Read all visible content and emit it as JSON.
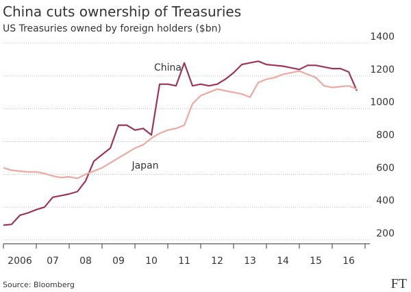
{
  "chart_data": {
    "type": "line",
    "title": "China cuts ownership of Treasuries",
    "subtitle": "US Treasuries owned by foreign holders ($bn)",
    "source": "Source: Bloomberg",
    "logo": "FT",
    "x": [
      2006,
      2006.25,
      2006.5,
      2006.75,
      2007,
      2007.25,
      2007.5,
      2007.75,
      2008,
      2008.25,
      2008.5,
      2008.75,
      2009,
      2009.25,
      2009.5,
      2009.75,
      2010,
      2010.25,
      2010.5,
      2010.75,
      2011,
      2011.25,
      2011.5,
      2011.75,
      2012,
      2012.25,
      2012.5,
      2012.75,
      2013,
      2013.25,
      2013.5,
      2013.75,
      2014,
      2014.25,
      2014.5,
      2014.75,
      2015,
      2015.25,
      2015.5,
      2015.75,
      2016,
      2016.25,
      2016.5,
      2016.75
    ],
    "series": [
      {
        "name": "China",
        "color": "#9b3457",
        "values": [
          290,
          295,
          350,
          365,
          385,
          400,
          460,
          470,
          480,
          495,
          560,
          680,
          720,
          760,
          900,
          900,
          870,
          880,
          840,
          1150,
          1150,
          1140,
          1280,
          1140,
          1150,
          1140,
          1150,
          1180,
          1220,
          1270,
          1280,
          1290,
          1270,
          1265,
          1260,
          1250,
          1240,
          1265,
          1265,
          1255,
          1245,
          1245,
          1225,
          1110
        ]
      },
      {
        "name": "Japan",
        "color": "#eba8a0",
        "values": [
          640,
          625,
          620,
          615,
          615,
          605,
          590,
          580,
          585,
          575,
          600,
          620,
          640,
          670,
          700,
          730,
          760,
          780,
          820,
          850,
          870,
          880,
          900,
          1030,
          1080,
          1100,
          1120,
          1110,
          1100,
          1090,
          1070,
          1160,
          1180,
          1190,
          1210,
          1220,
          1230,
          1210,
          1190,
          1140,
          1130,
          1135,
          1140,
          1120
        ]
      }
    ],
    "xlim": [
      2006,
      2017
    ],
    "xticks": [
      {
        "value": 2006,
        "label": "2006"
      },
      {
        "value": 2007,
        "label": "07"
      },
      {
        "value": 2008,
        "label": "08"
      },
      {
        "value": 2009,
        "label": "09"
      },
      {
        "value": 2010,
        "label": "10"
      },
      {
        "value": 2011,
        "label": "11"
      },
      {
        "value": 2012,
        "label": "12"
      },
      {
        "value": 2013,
        "label": "13"
      },
      {
        "value": 2014,
        "label": "14"
      },
      {
        "value": 2015,
        "label": "15"
      },
      {
        "value": 2016,
        "label": "16"
      }
    ],
    "ylim": [
      180,
      1400
    ],
    "yticks": [
      200,
      400,
      600,
      800,
      1000,
      1200,
      1400
    ],
    "grid": true
  }
}
